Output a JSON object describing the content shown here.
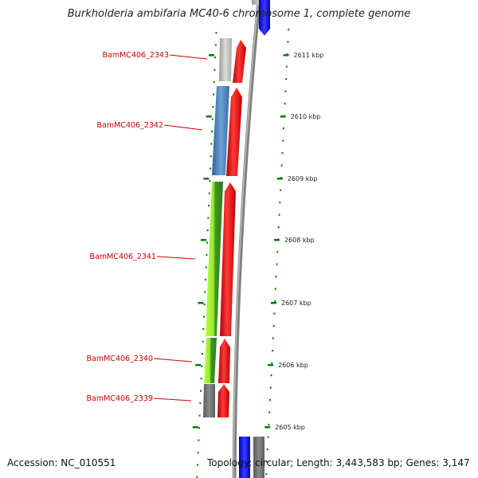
{
  "title": "Burkholderia ambifaria MC40-6 chromosome 1, complete genome",
  "footer": {
    "accession": "Accession: NC_010551",
    "topology": "Topology: circular; Length: 3,443,583 bp; Genes: 3,147"
  },
  "colors": {
    "label": "#cc0000",
    "tick": "#0a7a0a",
    "forward_gene": "#ff0000",
    "backbone": "#808080",
    "blue_gene": "#0000ff"
  },
  "ticks": [
    {
      "label": "2611 kbp"
    },
    {
      "label": "2610 kbp"
    },
    {
      "label": "2609 kbp"
    },
    {
      "label": "2608 kbp"
    },
    {
      "label": "2607 kbp"
    },
    {
      "label": "2606 kbp"
    },
    {
      "label": "2605 kbp"
    }
  ],
  "genes": [
    {
      "id": "BamMC406_2343",
      "cog_color": "#c0c0c0"
    },
    {
      "id": "BamMC406_2342",
      "cog_color": "#4a86c0"
    },
    {
      "id": "BamMC406_2341",
      "cog_color": "#8ee02a"
    },
    {
      "id": "BamMC406_2340",
      "cog_color": "#76d02a"
    },
    {
      "id": "BamMC406_2339",
      "cog_color": "#777777"
    }
  ]
}
